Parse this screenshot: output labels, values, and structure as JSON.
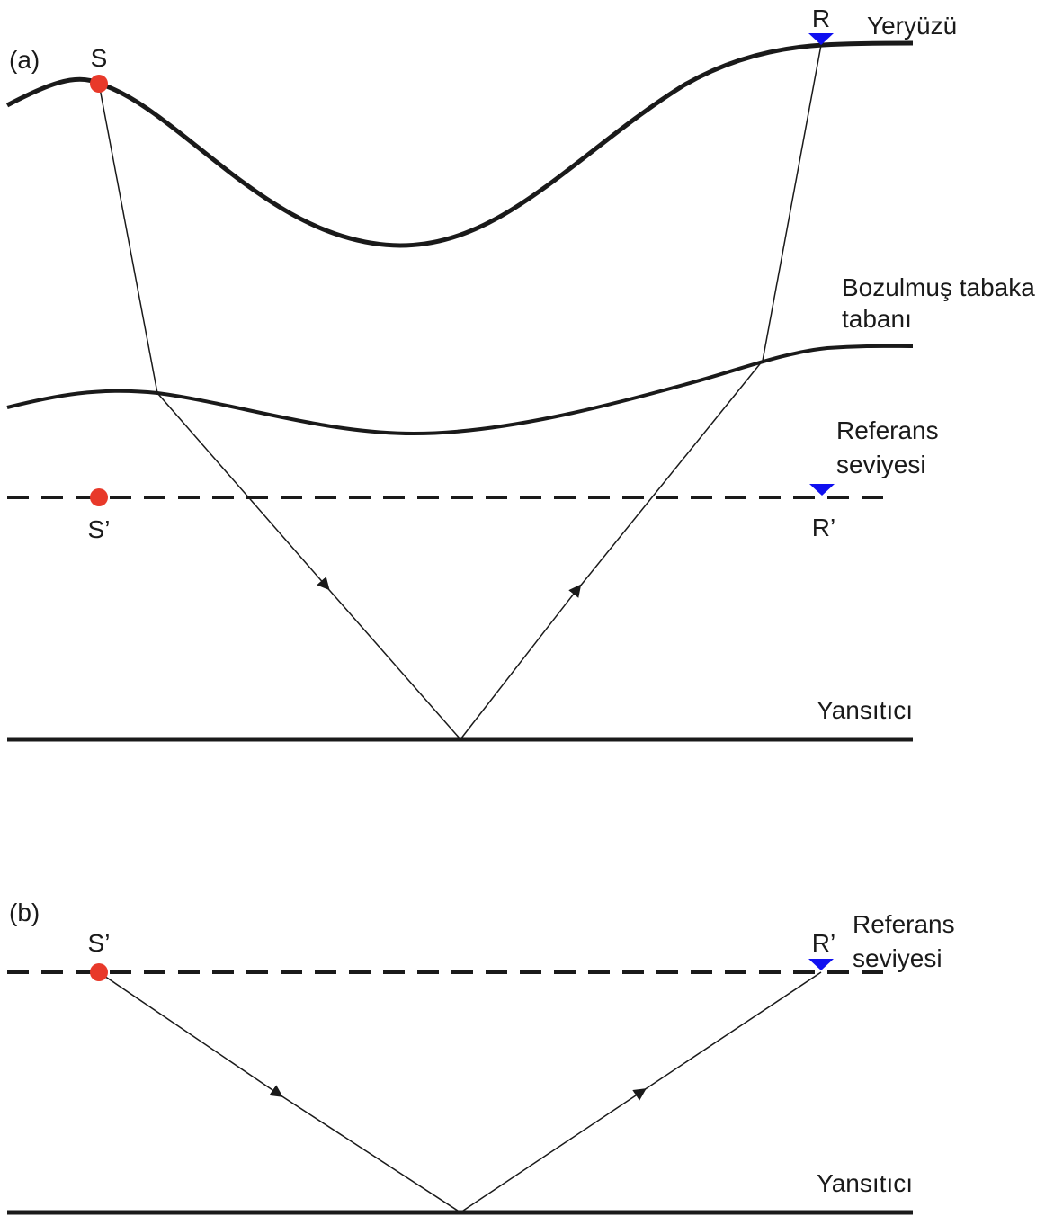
{
  "colors": {
    "source": "#e8392a",
    "receiver": "#1010f0",
    "line": "#1a1a1a"
  },
  "panel_a": {
    "label": "(a)",
    "source_label": "S",
    "receiver_label": "R",
    "surface_label": "Yeryüzü",
    "weathered_base_label_line1": "Bozulmuş tabaka",
    "weathered_base_label_line2": "tabanı",
    "datum_label_line1": "Referans",
    "datum_label_line2": "seviyesi",
    "datum_source_label": "S’",
    "datum_receiver_label": "R’",
    "reflector_label": "Yansıtıcı"
  },
  "panel_b": {
    "label": "(b)",
    "source_label": "S’",
    "receiver_label": "R’",
    "datum_label_line1": "Referans",
    "datum_label_line2": "seviyesi",
    "reflector_label": "Yansıtıcı"
  }
}
